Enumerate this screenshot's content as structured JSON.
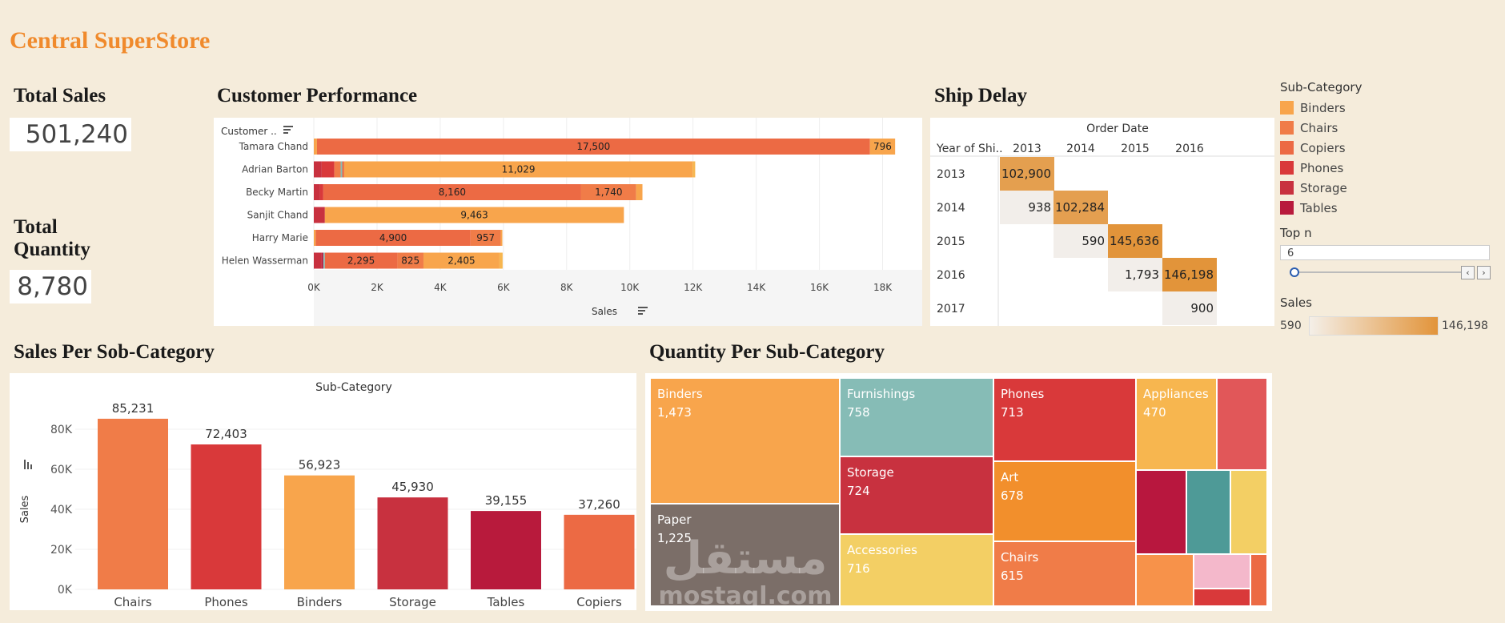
{
  "header": {
    "title": "Central SuperStore"
  },
  "kpis": {
    "total_sales_label": "Total Sales",
    "total_sales_value": "501,240",
    "total_quantity_label_line1": "Total",
    "total_quantity_label_line2": "Quantity",
    "total_quantity_value": "8,780"
  },
  "customer_chart": {
    "title": "Customer Performance",
    "row_header": "Customer ..",
    "x_axis_title": "Sales",
    "x_ticks": [
      "0K",
      "2K",
      "4K",
      "6K",
      "8K",
      "10K",
      "12K",
      "14K",
      "16K",
      "18K"
    ]
  },
  "ship_delay": {
    "title": "Ship Delay",
    "col_header": "Order Date",
    "row_header": "Year of Shi..",
    "cols": [
      "2013",
      "2014",
      "2015",
      "2016"
    ],
    "rows": [
      "2013",
      "2014",
      "2015",
      "2016",
      "2017"
    ]
  },
  "legend": {
    "title": "Sub-Category",
    "items": [
      {
        "name": "Binders",
        "color": "#f8a54c"
      },
      {
        "name": "Chairs",
        "color": "#f07c48"
      },
      {
        "name": "Copiers",
        "color": "#ec6a44"
      },
      {
        "name": "Phones",
        "color": "#d9393a"
      },
      {
        "name": "Storage",
        "color": "#c8313f"
      },
      {
        "name": "Tables",
        "color": "#b81a3c"
      }
    ],
    "top_n_label": "Top n",
    "top_n_value": "6",
    "sales_label": "Sales",
    "sales_min": "590",
    "sales_max": "146,198"
  },
  "sales_subcat": {
    "title": "Sales Per Sob-Category",
    "header": "Sub-Category",
    "y_axis_title": "Sales"
  },
  "quantity_subcat": {
    "title": "Quantity Per Sub-Category"
  },
  "watermark": {
    "arabic": "مستقل",
    "latin": "mostaql.com"
  },
  "colors": {
    "accent_title": "#f08a2c",
    "background": "#f5ecdb"
  },
  "chart_data": [
    {
      "type": "bar",
      "orientation": "horizontal-stacked",
      "title": "Customer Performance",
      "xlabel": "Sales",
      "xlim": [
        0,
        19000
      ],
      "categories": [
        "Tamara Chand",
        "Adrian Barton",
        "Becky Martin",
        "Sanjit Chand",
        "Harry Marie",
        "Helen Wasserman"
      ],
      "rows": [
        {
          "customer": "Tamara Chand",
          "segments": [
            {
              "sub": "Binders",
              "value": 100
            },
            {
              "sub": "Copiers",
              "value": 17500
            },
            {
              "sub": "Binders",
              "value": 796
            }
          ]
        },
        {
          "customer": "Adrian Barton",
          "segments": [
            {
              "sub": "Storage",
              "value": 250
            },
            {
              "sub": "Phones",
              "value": 400
            },
            {
              "sub": "Chairs",
              "value": 200
            },
            {
              "sub": "Furnishings",
              "value": 50
            },
            {
              "sub": "Copiers",
              "value": 60
            },
            {
              "sub": "Binders",
              "value": 11029
            },
            {
              "sub": "Appliances",
              "value": 80
            }
          ]
        },
        {
          "customer": "Becky Martin",
          "segments": [
            {
              "sub": "Storage",
              "value": 200
            },
            {
              "sub": "Phones",
              "value": 100
            },
            {
              "sub": "Copiers",
              "value": 8160
            },
            {
              "sub": "Chairs",
              "value": 1740
            },
            {
              "sub": "Binders",
              "value": 200
            }
          ]
        },
        {
          "customer": "Sanjit Chand",
          "segments": [
            {
              "sub": "Storage",
              "value": 350
            },
            {
              "sub": "Binders",
              "value": 9463
            }
          ]
        },
        {
          "customer": "Harry Marie",
          "segments": [
            {
              "sub": "Binders",
              "value": 60
            },
            {
              "sub": "Copiers",
              "value": 4900
            },
            {
              "sub": "Chairs",
              "value": 957
            },
            {
              "sub": "Binders",
              "value": 50
            }
          ]
        },
        {
          "customer": "Helen Wasserman",
          "segments": [
            {
              "sub": "Storage",
              "value": 250
            },
            {
              "sub": "Tables",
              "value": 50
            },
            {
              "sub": "Furnishings",
              "value": 50
            },
            {
              "sub": "Copiers",
              "value": 2295
            },
            {
              "sub": "Chairs",
              "value": 825
            },
            {
              "sub": "Binders",
              "value": 2405
            },
            {
              "sub": "Appliances",
              "value": 100
            }
          ]
        }
      ],
      "labels": [
        {
          "row": 0,
          "seg": 1,
          "text": "17,500"
        },
        {
          "row": 0,
          "seg": 2,
          "text": "796"
        },
        {
          "row": 1,
          "seg": 5,
          "text": "11,029"
        },
        {
          "row": 2,
          "seg": 2,
          "text": "8,160"
        },
        {
          "row": 2,
          "seg": 3,
          "text": "1,740"
        },
        {
          "row": 3,
          "seg": 1,
          "text": "9,463"
        },
        {
          "row": 4,
          "seg": 1,
          "text": "4,900"
        },
        {
          "row": 4,
          "seg": 2,
          "text": "957"
        },
        {
          "row": 5,
          "seg": 3,
          "text": "2,295"
        },
        {
          "row": 5,
          "seg": 4,
          "text": "825"
        },
        {
          "row": 5,
          "seg": 5,
          "text": "2,405"
        }
      ]
    },
    {
      "type": "heatmap",
      "title": "Ship Delay",
      "x": [
        "2013",
        "2014",
        "2015",
        "2016"
      ],
      "y": [
        "2013",
        "2014",
        "2015",
        "2016",
        "2017"
      ],
      "color_range": [
        590,
        146198
      ],
      "cells": [
        {
          "row": 0,
          "col": 0,
          "value": 102900,
          "label": "102,900"
        },
        {
          "row": 1,
          "col": 0,
          "value": 938,
          "label": "938"
        },
        {
          "row": 1,
          "col": 1,
          "value": 102284,
          "label": "102,284"
        },
        {
          "row": 2,
          "col": 1,
          "value": 590,
          "label": "590"
        },
        {
          "row": 2,
          "col": 2,
          "value": 145636,
          "label": "145,636"
        },
        {
          "row": 3,
          "col": 2,
          "value": 1793,
          "label": "1,793"
        },
        {
          "row": 3,
          "col": 3,
          "value": 146198,
          "label": "146,198"
        },
        {
          "row": 4,
          "col": 3,
          "value": 900,
          "label": "900"
        }
      ]
    },
    {
      "type": "bar",
      "title": "Sales Per Sob-Category",
      "ylabel": "Sales",
      "ylim": [
        0,
        92000
      ],
      "y_ticks": [
        {
          "v": 0,
          "t": "0K"
        },
        {
          "v": 20000,
          "t": "20K"
        },
        {
          "v": 40000,
          "t": "40K"
        },
        {
          "v": 60000,
          "t": "60K"
        },
        {
          "v": 80000,
          "t": "80K"
        }
      ],
      "categories": [
        "Chairs",
        "Phones",
        "Binders",
        "Storage",
        "Tables",
        "Copiers"
      ],
      "values": [
        85231,
        72403,
        56923,
        45930,
        39155,
        37260
      ],
      "labels": [
        "85,231",
        "72,403",
        "56,923",
        "45,930",
        "39,155",
        "37,260"
      ],
      "colors": [
        "#f07c48",
        "#d9393a",
        "#f8a54c",
        "#c8313f",
        "#b81a3c",
        "#ec6a44"
      ]
    },
    {
      "type": "treemap",
      "title": "Quantity Per Sub-Category",
      "items": [
        {
          "name": "Binders",
          "value": 1473,
          "label": "1,473",
          "color": "#f8a54c"
        },
        {
          "name": "Paper",
          "value": 1225,
          "label": "1,225",
          "color": "#7b6e68"
        },
        {
          "name": "Furnishings",
          "value": 758,
          "label": "758",
          "color": "#86bcb6"
        },
        {
          "name": "Storage",
          "value": 724,
          "label": "724",
          "color": "#c8313f"
        },
        {
          "name": "Accessories",
          "value": 716,
          "label": "716",
          "color": "#f3cf64"
        },
        {
          "name": "Phones",
          "value": 713,
          "label": "713",
          "color": "#d9393a"
        },
        {
          "name": "Art",
          "value": 678,
          "label": "678",
          "color": "#f28f2c"
        },
        {
          "name": "Chairs",
          "value": 615,
          "label": "615",
          "color": "#f07c48"
        },
        {
          "name": "Appliances",
          "value": 470,
          "label": "470",
          "color": "#f7b64f"
        }
      ]
    }
  ]
}
